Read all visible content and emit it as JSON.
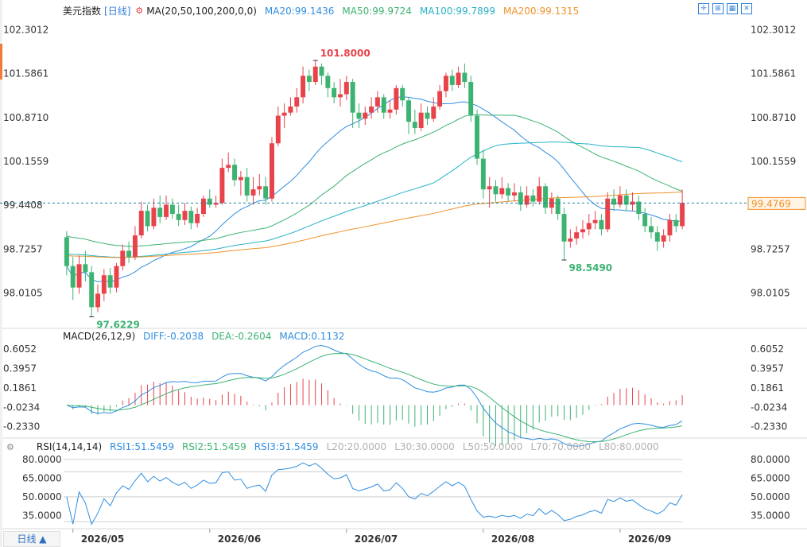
{
  "header": {
    "instrument": "美元指数",
    "period_tag": "[日线]",
    "settings_icon": "gear-circle-icon",
    "ma_label": "MA(20,50,100,200,0,0)",
    "ma_values": [
      {
        "text": "MA20:99.1436",
        "color": "#2f8ee0"
      },
      {
        "text": "MA50:99.9724",
        "color": "#3cb371"
      },
      {
        "text": "MA100:99.7899",
        "color": "#27b2c7"
      },
      {
        "text": "MA200:99.1315",
        "color": "#f0922a"
      }
    ]
  },
  "toolbar": {
    "icons": [
      "crosshair-icon",
      "compare-icon",
      "indicator-icon",
      "close-icon"
    ]
  },
  "macd_header": {
    "label": "MACD(26,12,9)",
    "values": [
      {
        "text": "DIFF:-0.2038",
        "color": "#2f8ee0"
      },
      {
        "text": "DEA:-0.2604",
        "color": "#3cb371"
      },
      {
        "text": "MACD:0.1132",
        "color": "#2f8ee0"
      }
    ]
  },
  "rsi_header": {
    "label": "RSI(14,14,14)",
    "values": [
      {
        "text": "RSI1:51.5459",
        "color": "#2f8ee0"
      },
      {
        "text": "RSI2:51.5459",
        "color": "#3cb371"
      },
      {
        "text": "RSI3:51.5459",
        "color": "#2f8ee0"
      },
      {
        "text": "L20:20.0000",
        "color": "#b0b0b0"
      },
      {
        "text": "L30:30.0000",
        "color": "#b0b0b0"
      },
      {
        "text": "L50:50.0000",
        "color": "#b0b0b0"
      },
      {
        "text": "L70:70.0000",
        "color": "#b0b0b0"
      },
      {
        "text": "L80:80.0000",
        "color": "#b0b0b0"
      }
    ]
  },
  "period_button": "日线 ▲",
  "colors": {
    "up": "#e8424a",
    "down": "#3cb371",
    "grid": "#e6e6e6",
    "axis_text": "#333333"
  },
  "chart_data": [
    {
      "type": "candlestick",
      "title": "美元指数",
      "ylim": [
        97.5,
        102.5
      ],
      "y_ticks": [
        "102.3012",
        "101.5861",
        "100.8710",
        "100.1559",
        "99.4408",
        "98.7257",
        "98.0105"
      ],
      "x_ticks": [
        "2026/05",
        "2026/06",
        "2026/07",
        "2026/08",
        "2026/09"
      ],
      "x_tick_index": [
        1,
        23,
        45,
        67,
        89
      ],
      "last_price": "99.4769",
      "annotations": [
        {
          "text": "101.8000",
          "index": 40,
          "value": 101.8,
          "color": "#e8424a"
        },
        {
          "text": "97.6229",
          "index": 4,
          "value": 97.6229,
          "color": "#3cb371"
        },
        {
          "text": "98.5490",
          "index": 80,
          "value": 98.549,
          "color": "#3cb371"
        }
      ],
      "candles": [
        [
          98.92,
          98.45,
          99.02,
          98.3
        ],
        [
          98.45,
          98.1,
          98.6,
          97.9
        ],
        [
          98.1,
          98.48,
          98.62,
          98.0
        ],
        [
          98.48,
          98.35,
          98.7,
          98.2
        ],
        [
          98.35,
          97.78,
          98.45,
          97.62
        ],
        [
          97.78,
          98.0,
          98.15,
          97.7
        ],
        [
          98.0,
          98.3,
          98.4,
          97.88
        ],
        [
          98.3,
          98.1,
          98.42,
          98.0
        ],
        [
          98.1,
          98.45,
          98.5,
          98.02
        ],
        [
          98.45,
          98.7,
          98.8,
          98.38
        ],
        [
          98.7,
          98.6,
          98.85,
          98.5
        ],
        [
          98.6,
          98.95,
          99.1,
          98.55
        ],
        [
          98.95,
          99.35,
          99.5,
          98.9
        ],
        [
          99.35,
          99.1,
          99.45,
          99.02
        ],
        [
          99.1,
          99.4,
          99.55,
          99.05
        ],
        [
          99.4,
          99.25,
          99.6,
          99.15
        ],
        [
          99.25,
          99.45,
          99.6,
          99.2
        ],
        [
          99.45,
          99.3,
          99.55,
          99.22
        ],
        [
          99.3,
          99.2,
          99.45,
          99.1
        ],
        [
          99.2,
          99.35,
          99.48,
          99.12
        ],
        [
          99.35,
          99.15,
          99.42,
          99.05
        ],
        [
          99.15,
          99.3,
          99.4,
          99.08
        ],
        [
          99.3,
          99.55,
          99.6,
          99.25
        ],
        [
          99.55,
          99.45,
          99.7,
          99.4
        ],
        [
          99.45,
          99.48,
          99.6,
          99.4
        ],
        [
          99.48,
          100.05,
          100.2,
          99.45
        ],
        [
          100.05,
          100.1,
          100.3,
          99.98
        ],
        [
          100.1,
          99.85,
          100.2,
          99.75
        ],
        [
          99.85,
          99.9,
          100.0,
          99.6
        ],
        [
          99.9,
          99.6,
          100.05,
          99.5
        ],
        [
          99.6,
          99.7,
          99.9,
          99.45
        ],
        [
          99.7,
          99.75,
          99.95,
          99.6
        ],
        [
          99.75,
          99.55,
          99.9,
          99.45
        ],
        [
          99.55,
          100.45,
          100.55,
          99.5
        ],
        [
          100.45,
          100.9,
          101.05,
          100.4
        ],
        [
          100.9,
          100.95,
          101.1,
          100.7
        ],
        [
          100.95,
          101.05,
          101.2,
          100.9
        ],
        [
          101.05,
          101.2,
          101.35,
          100.95
        ],
        [
          101.2,
          101.55,
          101.7,
          101.1
        ],
        [
          101.55,
          101.45,
          101.65,
          101.3
        ],
        [
          101.45,
          101.7,
          101.8,
          101.4
        ],
        [
          101.7,
          101.55,
          101.75,
          101.4
        ],
        [
          101.55,
          101.35,
          101.6,
          101.2
        ],
        [
          101.35,
          101.2,
          101.45,
          101.1
        ],
        [
          101.2,
          101.25,
          101.5,
          101.05
        ],
        [
          101.25,
          101.45,
          101.55,
          101.15
        ],
        [
          101.45,
          100.95,
          101.5,
          100.7
        ],
        [
          100.95,
          100.85,
          101.1,
          100.7
        ],
        [
          100.85,
          100.95,
          101.05,
          100.75
        ],
        [
          100.95,
          101.05,
          101.2,
          100.85
        ],
        [
          101.05,
          101.2,
          101.3,
          100.95
        ],
        [
          101.2,
          100.95,
          101.25,
          100.85
        ],
        [
          100.95,
          101.0,
          101.15,
          100.85
        ],
        [
          101.0,
          101.35,
          101.4,
          100.92
        ],
        [
          101.35,
          101.15,
          101.4,
          101.05
        ],
        [
          101.15,
          100.8,
          101.2,
          100.6
        ],
        [
          100.8,
          100.7,
          101.0,
          100.6
        ],
        [
          100.7,
          100.95,
          101.1,
          100.65
        ],
        [
          100.95,
          100.85,
          101.05,
          100.75
        ],
        [
          100.85,
          101.05,
          101.2,
          100.8
        ],
        [
          101.05,
          101.3,
          101.4,
          101.0
        ],
        [
          101.3,
          101.55,
          101.6,
          101.2
        ],
        [
          101.55,
          101.4,
          101.65,
          101.3
        ],
        [
          101.4,
          101.6,
          101.7,
          101.35
        ],
        [
          101.6,
          101.45,
          101.75,
          101.35
        ],
        [
          101.45,
          100.9,
          101.55,
          100.8
        ],
        [
          100.9,
          100.2,
          101.0,
          100.1
        ],
        [
          100.2,
          99.7,
          100.35,
          99.55
        ],
        [
          99.7,
          99.75,
          99.9,
          99.4
        ],
        [
          99.75,
          99.62,
          99.85,
          99.5
        ],
        [
          99.62,
          99.72,
          99.9,
          99.55
        ],
        [
          99.72,
          99.6,
          99.8,
          99.5
        ],
        [
          99.6,
          99.65,
          99.8,
          99.5
        ],
        [
          99.65,
          99.45,
          99.75,
          99.35
        ],
        [
          99.45,
          99.6,
          99.75,
          99.4
        ],
        [
          99.6,
          99.5,
          99.7,
          99.42
        ],
        [
          99.5,
          99.75,
          99.9,
          99.45
        ],
        [
          99.75,
          99.4,
          99.8,
          99.3
        ],
        [
          99.4,
          99.55,
          99.65,
          99.3
        ],
        [
          99.55,
          99.3,
          99.6,
          99.2
        ],
        [
          99.3,
          98.85,
          99.4,
          98.55
        ],
        [
          98.85,
          98.9,
          99.05,
          98.75
        ],
        [
          98.9,
          99.0,
          99.1,
          98.8
        ],
        [
          99.0,
          99.05,
          99.2,
          98.9
        ],
        [
          99.05,
          99.15,
          99.3,
          98.95
        ],
        [
          99.15,
          99.2,
          99.35,
          99.05
        ],
        [
          99.2,
          99.05,
          99.3,
          98.95
        ],
        [
          99.05,
          99.55,
          99.65,
          99.0
        ],
        [
          99.55,
          99.45,
          99.7,
          99.35
        ],
        [
          99.45,
          99.6,
          99.75,
          99.4
        ],
        [
          99.6,
          99.45,
          99.7,
          99.35
        ],
        [
          99.45,
          99.5,
          99.65,
          99.35
        ],
        [
          99.5,
          99.3,
          99.6,
          99.2
        ],
        [
          99.3,
          99.1,
          99.4,
          99.0
        ],
        [
          99.1,
          99.0,
          99.25,
          98.9
        ],
        [
          99.0,
          98.85,
          99.1,
          98.7
        ],
        [
          98.85,
          98.95,
          99.05,
          98.75
        ],
        [
          98.95,
          99.2,
          99.3,
          98.85
        ],
        [
          99.2,
          99.1,
          99.3,
          99.0
        ],
        [
          99.1,
          99.48,
          99.7,
          99.05
        ]
      ]
    },
    {
      "type": "line",
      "title": "MACD(26,12,9)",
      "ylim": [
        -0.33,
        0.7
      ],
      "y_ticks": [
        "0.6052",
        "0.3957",
        "0.1861",
        "-0.0234",
        "-0.2330"
      ],
      "series": [
        {
          "name": "DIFF"
        },
        {
          "name": "DEA"
        },
        {
          "name": "MACD"
        }
      ],
      "last_values": {
        "DIFF": -0.2038,
        "DEA": -0.2604,
        "MACD": 0.1132
      }
    },
    {
      "type": "line",
      "title": "RSI(14,14,14)",
      "ylim": [
        25,
        85
      ],
      "y_ticks": [
        "80.0000",
        "65.0000",
        "50.0000",
        "35.0000"
      ],
      "reference_lines": [
        80,
        70,
        50,
        30
      ],
      "series": [
        {
          "name": "RSI1"
        }
      ],
      "last_value": 51.5459
    }
  ]
}
